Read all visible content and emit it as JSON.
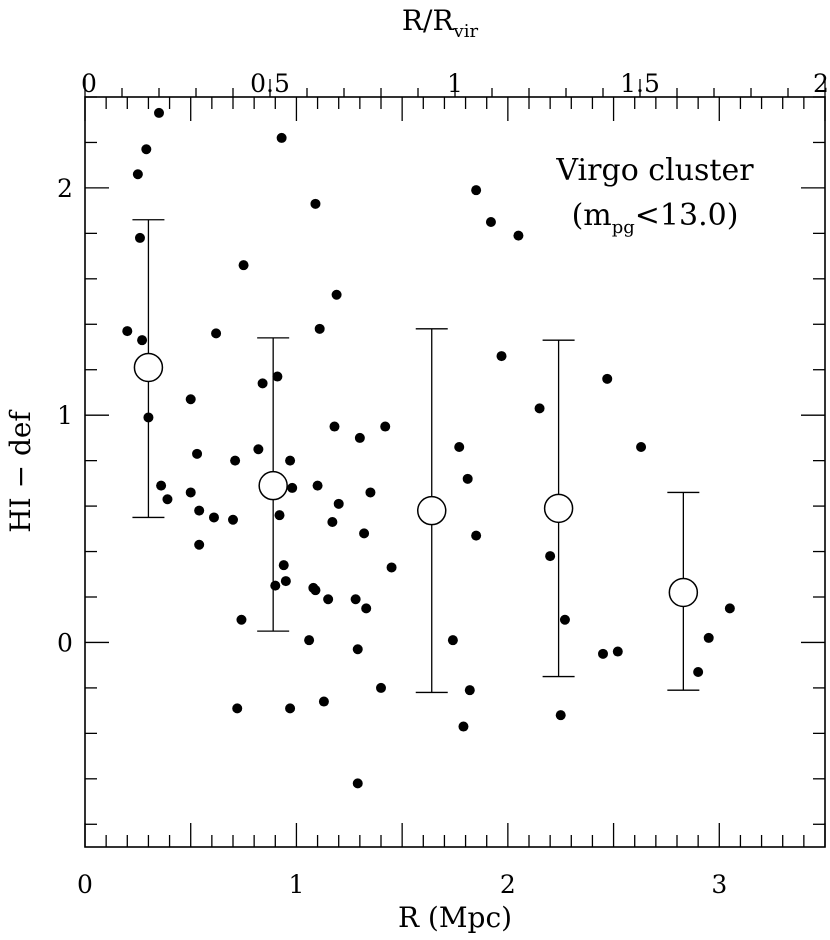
{
  "chart_data": {
    "type": "scatter",
    "title": "",
    "annotation": {
      "line1": "Virgo cluster",
      "line2_prefix": "(m",
      "line2_sub": "pg",
      "line2_suffix": "<13.0)"
    },
    "xlabel": "R (Mpc)",
    "ylabel": "HI − def",
    "top_xlabel": {
      "main": "R/R",
      "sub": "vir"
    },
    "xlim": [
      0,
      3.5
    ],
    "ylim": [
      -0.9,
      2.4
    ],
    "top_xlim": [
      0,
      2.0
    ],
    "x_ticks": [
      "0",
      "1",
      "2",
      "3"
    ],
    "y_ticks": [
      "0",
      "1",
      "2"
    ],
    "top_x_ticks": [
      "0",
      "0.5",
      "1",
      "1.5",
      "2"
    ],
    "grid": false,
    "series": [
      {
        "marker": "filled-dot",
        "points": [
          [
            0.2,
            1.37
          ],
          [
            0.25,
            2.06
          ],
          [
            0.26,
            1.78
          ],
          [
            0.27,
            1.33
          ],
          [
            0.29,
            2.17
          ],
          [
            0.3,
            0.99
          ],
          [
            0.35,
            2.33
          ],
          [
            0.36,
            0.69
          ],
          [
            0.39,
            0.63
          ],
          [
            0.5,
            1.07
          ],
          [
            0.5,
            0.66
          ],
          [
            0.53,
            0.83
          ],
          [
            0.54,
            0.58
          ],
          [
            0.54,
            0.43
          ],
          [
            0.61,
            0.55
          ],
          [
            0.62,
            1.36
          ],
          [
            0.7,
            0.54
          ],
          [
            0.71,
            0.8
          ],
          [
            0.72,
            -0.29
          ],
          [
            0.74,
            0.1
          ],
          [
            0.75,
            1.66
          ],
          [
            0.82,
            0.85
          ],
          [
            0.84,
            1.14
          ],
          [
            0.9,
            0.25
          ],
          [
            0.91,
            1.17
          ],
          [
            0.92,
            0.56
          ],
          [
            0.93,
            2.22
          ],
          [
            0.94,
            0.34
          ],
          [
            0.95,
            0.27
          ],
          [
            0.97,
            0.8
          ],
          [
            0.97,
            -0.29
          ],
          [
            0.98,
            0.68
          ],
          [
            1.06,
            0.01
          ],
          [
            1.08,
            0.24
          ],
          [
            1.09,
            0.23
          ],
          [
            1.09,
            1.93
          ],
          [
            1.1,
            0.69
          ],
          [
            1.11,
            1.38
          ],
          [
            1.13,
            -0.26
          ],
          [
            1.15,
            0.19
          ],
          [
            1.17,
            0.53
          ],
          [
            1.18,
            0.95
          ],
          [
            1.19,
            1.53
          ],
          [
            1.2,
            0.61
          ],
          [
            1.28,
            0.19
          ],
          [
            1.29,
            -0.03
          ],
          [
            1.29,
            -0.62
          ],
          [
            1.3,
            0.9
          ],
          [
            1.32,
            0.48
          ],
          [
            1.33,
            0.15
          ],
          [
            1.35,
            0.66
          ],
          [
            1.4,
            -0.2
          ],
          [
            1.42,
            0.95
          ],
          [
            1.45,
            0.33
          ],
          [
            1.74,
            0.01
          ],
          [
            1.77,
            0.86
          ],
          [
            1.79,
            -0.37
          ],
          [
            1.81,
            0.72
          ],
          [
            1.82,
            -0.21
          ],
          [
            1.85,
            0.47
          ],
          [
            1.85,
            1.99
          ],
          [
            1.92,
            1.85
          ],
          [
            1.97,
            1.26
          ],
          [
            2.05,
            1.79
          ],
          [
            2.15,
            1.03
          ],
          [
            2.2,
            0.38
          ],
          [
            2.25,
            -0.32
          ],
          [
            2.27,
            0.1
          ],
          [
            2.45,
            -0.05
          ],
          [
            2.47,
            1.16
          ],
          [
            2.52,
            -0.04
          ],
          [
            2.63,
            0.86
          ],
          [
            2.9,
            -0.13
          ],
          [
            2.95,
            0.02
          ],
          [
            3.05,
            0.15
          ]
        ]
      },
      {
        "marker": "open-circle-errorbar",
        "points": [
          {
            "x": 0.3,
            "y": 1.21,
            "lo": 0.55,
            "hi": 1.86
          },
          {
            "x": 0.89,
            "y": 0.69,
            "lo": 0.05,
            "hi": 1.34
          },
          {
            "x": 1.64,
            "y": 0.58,
            "lo": -0.22,
            "hi": 1.38
          },
          {
            "x": 2.24,
            "y": 0.59,
            "lo": -0.15,
            "hi": 1.33
          },
          {
            "x": 2.83,
            "y": 0.22,
            "lo": -0.21,
            "hi": 0.66
          }
        ]
      }
    ]
  }
}
